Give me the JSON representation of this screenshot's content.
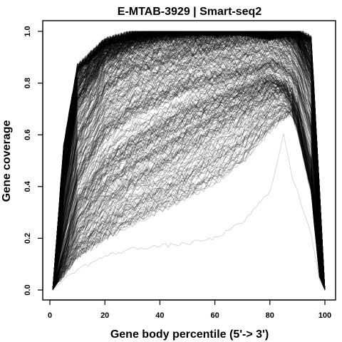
{
  "chart_data": {
    "type": "line",
    "title": "E-MTAB-3929 | Smart-seq2",
    "xlabel": "Gene body percentile (5'-> 3')",
    "ylabel": "Gene coverage",
    "xlim": [
      0,
      100
    ],
    "ylim": [
      0,
      1.0
    ],
    "x_ticks": [
      "0",
      "20",
      "40",
      "60",
      "80",
      "100"
    ],
    "y_ticks": [
      "0.0",
      "0.2",
      "0.4",
      "0.6",
      "0.8",
      "1.0"
    ],
    "grid": false,
    "legend": "none",
    "line_color": "#000000",
    "x": [
      1,
      5,
      10,
      20,
      30,
      40,
      50,
      60,
      70,
      80,
      85,
      88,
      90,
      95,
      98,
      100
    ],
    "series_summary": "hundreds of overlapping per-sample coverage curves",
    "series": [
      {
        "values": [
          0,
          0.55,
          0.86,
          0.96,
          0.99,
          1.0,
          1.0,
          1.0,
          1.0,
          0.98,
          0.99,
          1.0,
          1.0,
          0.97,
          0.4,
          0
        ]
      },
      {
        "values": [
          0,
          0.45,
          0.78,
          0.92,
          0.97,
          0.99,
          1.0,
          1.0,
          1.0,
          0.99,
          1.0,
          0.99,
          0.98,
          0.9,
          0.3,
          0
        ]
      },
      {
        "values": [
          0,
          0.38,
          0.72,
          0.88,
          0.94,
          0.97,
          0.98,
          0.99,
          1.0,
          1.0,
          0.99,
          0.98,
          0.96,
          0.85,
          0.25,
          0
        ]
      },
      {
        "values": [
          0,
          0.3,
          0.6,
          0.8,
          0.87,
          0.9,
          0.93,
          0.95,
          0.97,
          0.98,
          0.97,
          0.95,
          0.92,
          0.8,
          0.2,
          0
        ]
      },
      {
        "values": [
          0,
          0.25,
          0.5,
          0.7,
          0.78,
          0.82,
          0.86,
          0.88,
          0.9,
          0.92,
          0.91,
          0.88,
          0.85,
          0.7,
          0.15,
          0
        ]
      },
      {
        "values": [
          0,
          0.2,
          0.42,
          0.6,
          0.68,
          0.73,
          0.78,
          0.8,
          0.83,
          0.86,
          0.85,
          0.82,
          0.78,
          0.6,
          0.12,
          0
        ]
      },
      {
        "values": [
          0,
          0.15,
          0.35,
          0.5,
          0.58,
          0.64,
          0.7,
          0.74,
          0.78,
          0.82,
          0.8,
          0.77,
          0.72,
          0.5,
          0.1,
          0
        ]
      },
      {
        "values": [
          0,
          0.12,
          0.28,
          0.42,
          0.5,
          0.56,
          0.62,
          0.68,
          0.73,
          0.79,
          0.78,
          0.74,
          0.68,
          0.45,
          0.08,
          0
        ]
      },
      {
        "values": [
          0,
          0.1,
          0.22,
          0.34,
          0.42,
          0.48,
          0.55,
          0.62,
          0.68,
          0.75,
          0.76,
          0.72,
          0.66,
          0.42,
          0.07,
          0
        ]
      },
      {
        "values": [
          0,
          0.08,
          0.17,
          0.27,
          0.34,
          0.4,
          0.46,
          0.53,
          0.6,
          0.7,
          0.72,
          0.7,
          0.64,
          0.4,
          0.06,
          0
        ]
      },
      {
        "values": [
          0,
          0.06,
          0.13,
          0.2,
          0.26,
          0.31,
          0.36,
          0.42,
          0.5,
          0.62,
          0.67,
          0.68,
          0.62,
          0.38,
          0.05,
          0
        ]
      },
      {
        "values": [
          0,
          0.04,
          0.08,
          0.13,
          0.16,
          0.17,
          0.18,
          0.2,
          0.26,
          0.38,
          0.6,
          0.44,
          0.38,
          0.22,
          0.04,
          0
        ]
      }
    ]
  }
}
